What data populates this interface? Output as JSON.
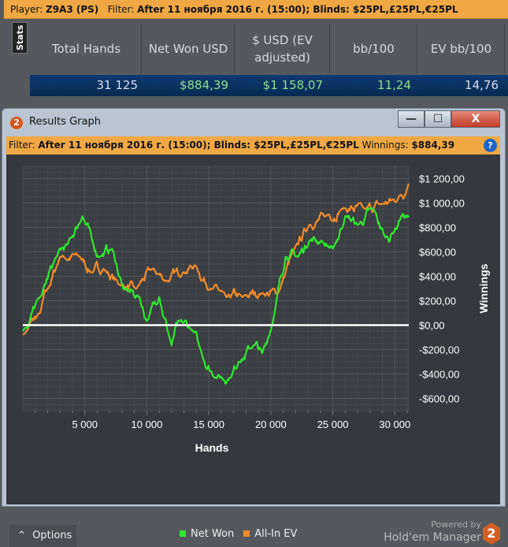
{
  "topbar": {
    "player_label": "Player:",
    "player": "Z9A3 (PS)",
    "filter_label": "Filter:",
    "filter": "After 11 ноября 2016 г. (15:00); Blinds: $25PL,£25PL,€25PL"
  },
  "stats": {
    "tab": "Stats",
    "headers": [
      "Total Hands",
      "Net Won USD",
      "$ USD (EV adjusted)",
      "bb/100",
      "EV bb/100"
    ],
    "row": [
      "31 125",
      "$884,39",
      "$1 158,07",
      "11,24",
      "14,76"
    ]
  },
  "window": {
    "title": "Results Graph",
    "buttons": {
      "minimize": "—",
      "maximize": "☐",
      "close": "X"
    },
    "filter_label": "Filter:",
    "filter": "After 11 ноября 2016 г. (15:00); Blinds: $25PL,£25PL,€25PL",
    "winnings_label": "Winnings:",
    "winnings": "$884,39",
    "help": "?"
  },
  "footer": {
    "options": "Options",
    "powered_by": "Powered by",
    "brand": "Hold'em Manager",
    "brand_logo": "2"
  },
  "colors": {
    "net_won": "#2ee82e",
    "all_in_ev": "#f08a2a",
    "accent": "#f0a845"
  },
  "chart_data": {
    "type": "line",
    "xlabel": "Hands",
    "ylabel": "Winnings",
    "xlim": [
      0,
      31125
    ],
    "ylim": [
      -700,
      1300
    ],
    "grid": true,
    "x_ticks": [
      5000,
      10000,
      15000,
      20000,
      25000,
      30000
    ],
    "x_tick_labels": [
      "5 000",
      "10 000",
      "15 000",
      "20 000",
      "25 000",
      "30 000"
    ],
    "y_ticks": [
      -600,
      -400,
      -200,
      0,
      200,
      400,
      600,
      800,
      1000,
      1200
    ],
    "y_tick_labels": [
      "-$600,00",
      "-$400,00",
      "-$200,00",
      "$0,00",
      "$200,00",
      "$400,00",
      "$600,00",
      "$800,00",
      "$1 000,00",
      "$1 200,00"
    ],
    "legend": "bottom",
    "series": [
      {
        "name": "Net Won",
        "color": "#2ee82e",
        "x": [
          0,
          1400,
          2700,
          3600,
          4800,
          5600,
          6200,
          7200,
          8100,
          9400,
          10000,
          11000,
          12000,
          12600,
          13600,
          14200,
          15500,
          16700,
          17400,
          18600,
          19300,
          20300,
          21200,
          22200,
          23100,
          24100,
          25000,
          26000,
          27000,
          28300,
          29200,
          29900,
          30500,
          31125
        ],
        "y": [
          -50,
          230,
          560,
          660,
          890,
          690,
          560,
          625,
          296,
          230,
          33,
          230,
          -165,
          33,
          -33,
          -165,
          -430,
          -430,
          -300,
          -165,
          -230,
          100,
          560,
          560,
          690,
          690,
          625,
          890,
          820,
          950,
          720,
          760,
          890,
          884
        ]
      },
      {
        "name": "All-In EV",
        "color": "#f08a2a",
        "x": [
          0,
          1400,
          2000,
          3000,
          4600,
          5600,
          6500,
          7800,
          9100,
          10400,
          11600,
          12900,
          13900,
          15200,
          16400,
          17700,
          19300,
          20600,
          21900,
          23100,
          24400,
          25700,
          27600,
          28900,
          30200,
          31125
        ],
        "y": [
          -80,
          100,
          296,
          560,
          560,
          430,
          460,
          330,
          296,
          460,
          360,
          430,
          490,
          296,
          230,
          230,
          263,
          263,
          625,
          820,
          890,
          950,
          950,
          990,
          1020,
          1158
        ]
      }
    ]
  }
}
